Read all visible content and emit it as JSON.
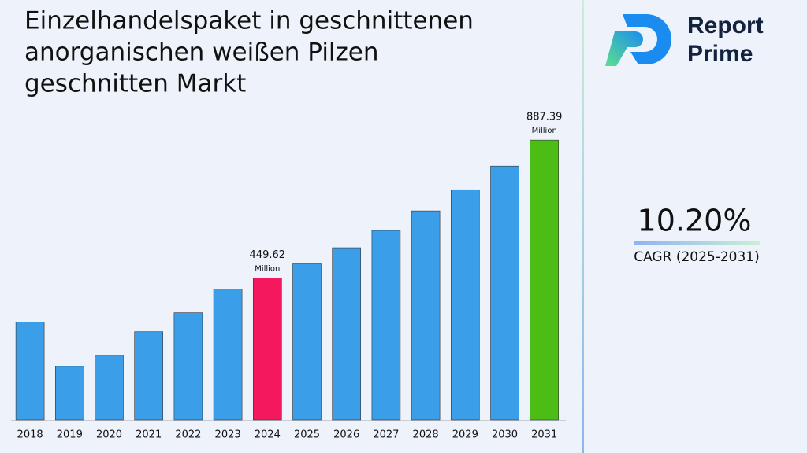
{
  "chart_data": {
    "type": "bar",
    "title": [
      "Einzelhandelspaket in geschnittenen",
      "anorganischen weißen Pilzen",
      "geschnitten Markt"
    ],
    "categories": [
      "2018",
      "2019",
      "2020",
      "2021",
      "2022",
      "2023",
      "2024",
      "2025",
      "2026",
      "2027",
      "2028",
      "2029",
      "2030",
      "2031"
    ],
    "values": [
      310,
      170,
      205,
      280,
      340,
      415,
      449.62,
      495,
      546,
      601,
      663,
      730,
      805,
      887.39
    ],
    "colors": [
      "#3a9fe8",
      "#3a9fe8",
      "#3a9fe8",
      "#3a9fe8",
      "#3a9fe8",
      "#3a9fe8",
      "#f4195f",
      "#3a9fe8",
      "#3a9fe8",
      "#3a9fe8",
      "#3a9fe8",
      "#3a9fe8",
      "#3a9fe8",
      "#4cbd14"
    ],
    "value_labels": [
      null,
      null,
      null,
      null,
      null,
      null,
      "449.62",
      null,
      null,
      null,
      null,
      null,
      null,
      "887.39"
    ],
    "value_unit": "Million",
    "ylim": [
      0,
      1000
    ]
  },
  "brand": [
    "Report",
    "Prime"
  ],
  "kpi": {
    "value": "10.20%",
    "label": "CAGR (2025-2031)"
  }
}
